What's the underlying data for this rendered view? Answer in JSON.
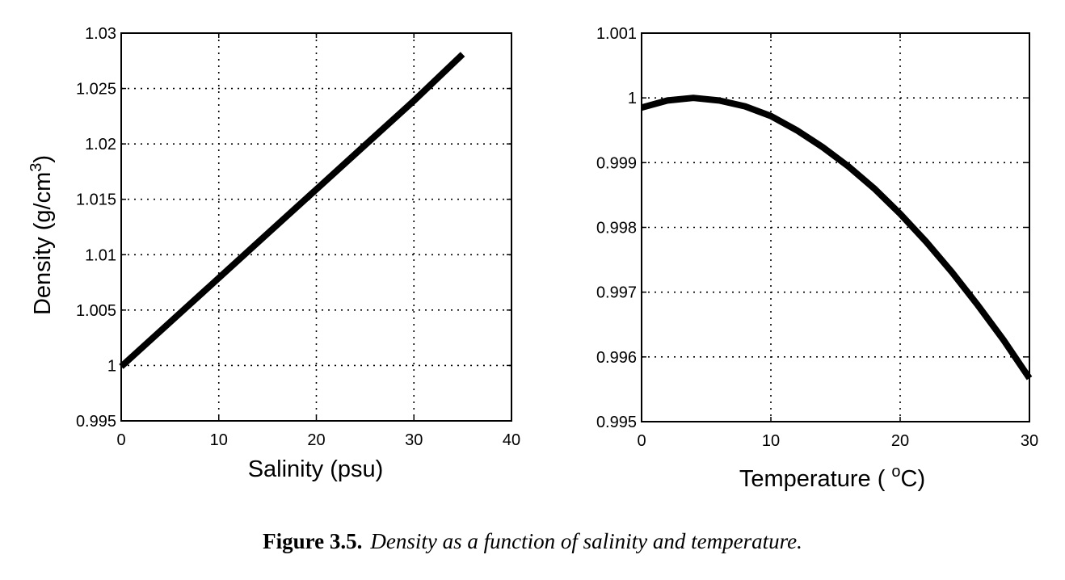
{
  "chart_data": [
    {
      "type": "line",
      "title": "",
      "xlabel": "Salinity (psu)",
      "ylabel": "Density (g/cm3)",
      "ylabel_main": "Density (g/cm",
      "ylabel_sup": "3",
      "ylabel_end": ")",
      "xlim": [
        0,
        40
      ],
      "ylim": [
        0.995,
        1.03
      ],
      "xticks": [
        0,
        10,
        20,
        30,
        40
      ],
      "xtick_labels": [
        "0",
        "10",
        "20",
        "30",
        "40"
      ],
      "yticks": [
        0.995,
        1,
        1.005,
        1.01,
        1.015,
        1.02,
        1.025,
        1.03
      ],
      "ytick_labels": [
        "0.995",
        "1",
        "1.005",
        "1.01",
        "1.015",
        "1.02",
        "1.025",
        "1.03"
      ],
      "grid": true,
      "series": [
        {
          "x": [
            0,
            5,
            10,
            15,
            20,
            25,
            30,
            35
          ],
          "y": [
            0.9999,
            1.0039,
            1.0079,
            1.0119,
            1.0159,
            1.0199,
            1.0239,
            1.0281
          ]
        }
      ]
    },
    {
      "type": "line",
      "title": "",
      "xlabel": "Temperature ( oC)",
      "xlabel_main": "Temperature (",
      "xlabel_sup": "o",
      "xlabel_end": "C)",
      "ylabel": "",
      "xlim": [
        0,
        30
      ],
      "ylim": [
        0.995,
        1.001
      ],
      "xticks": [
        0,
        10,
        20,
        30
      ],
      "xtick_labels": [
        "0",
        "10",
        "20",
        "30"
      ],
      "yticks": [
        0.995,
        0.996,
        0.997,
        0.998,
        0.999,
        1,
        1.001
      ],
      "ytick_labels": [
        "0.995",
        "0.996",
        "0.997",
        "0.998",
        "0.999",
        "1",
        "1.001"
      ],
      "grid": true,
      "series": [
        {
          "x": [
            0,
            2,
            4,
            6,
            8,
            10,
            12,
            14,
            16,
            18,
            20,
            22,
            24,
            26,
            28,
            30
          ],
          "y": [
            0.99985,
            0.99996,
            1.0,
            0.99996,
            0.99987,
            0.99972,
            0.9995,
            0.99924,
            0.99894,
            0.9986,
            0.99821,
            0.99778,
            0.99731,
            0.9968,
            0.99626,
            0.99567
          ]
        }
      ]
    }
  ],
  "caption": {
    "number": "Figure 3.5.",
    "text": "Density as a function of salinity and temperature."
  }
}
